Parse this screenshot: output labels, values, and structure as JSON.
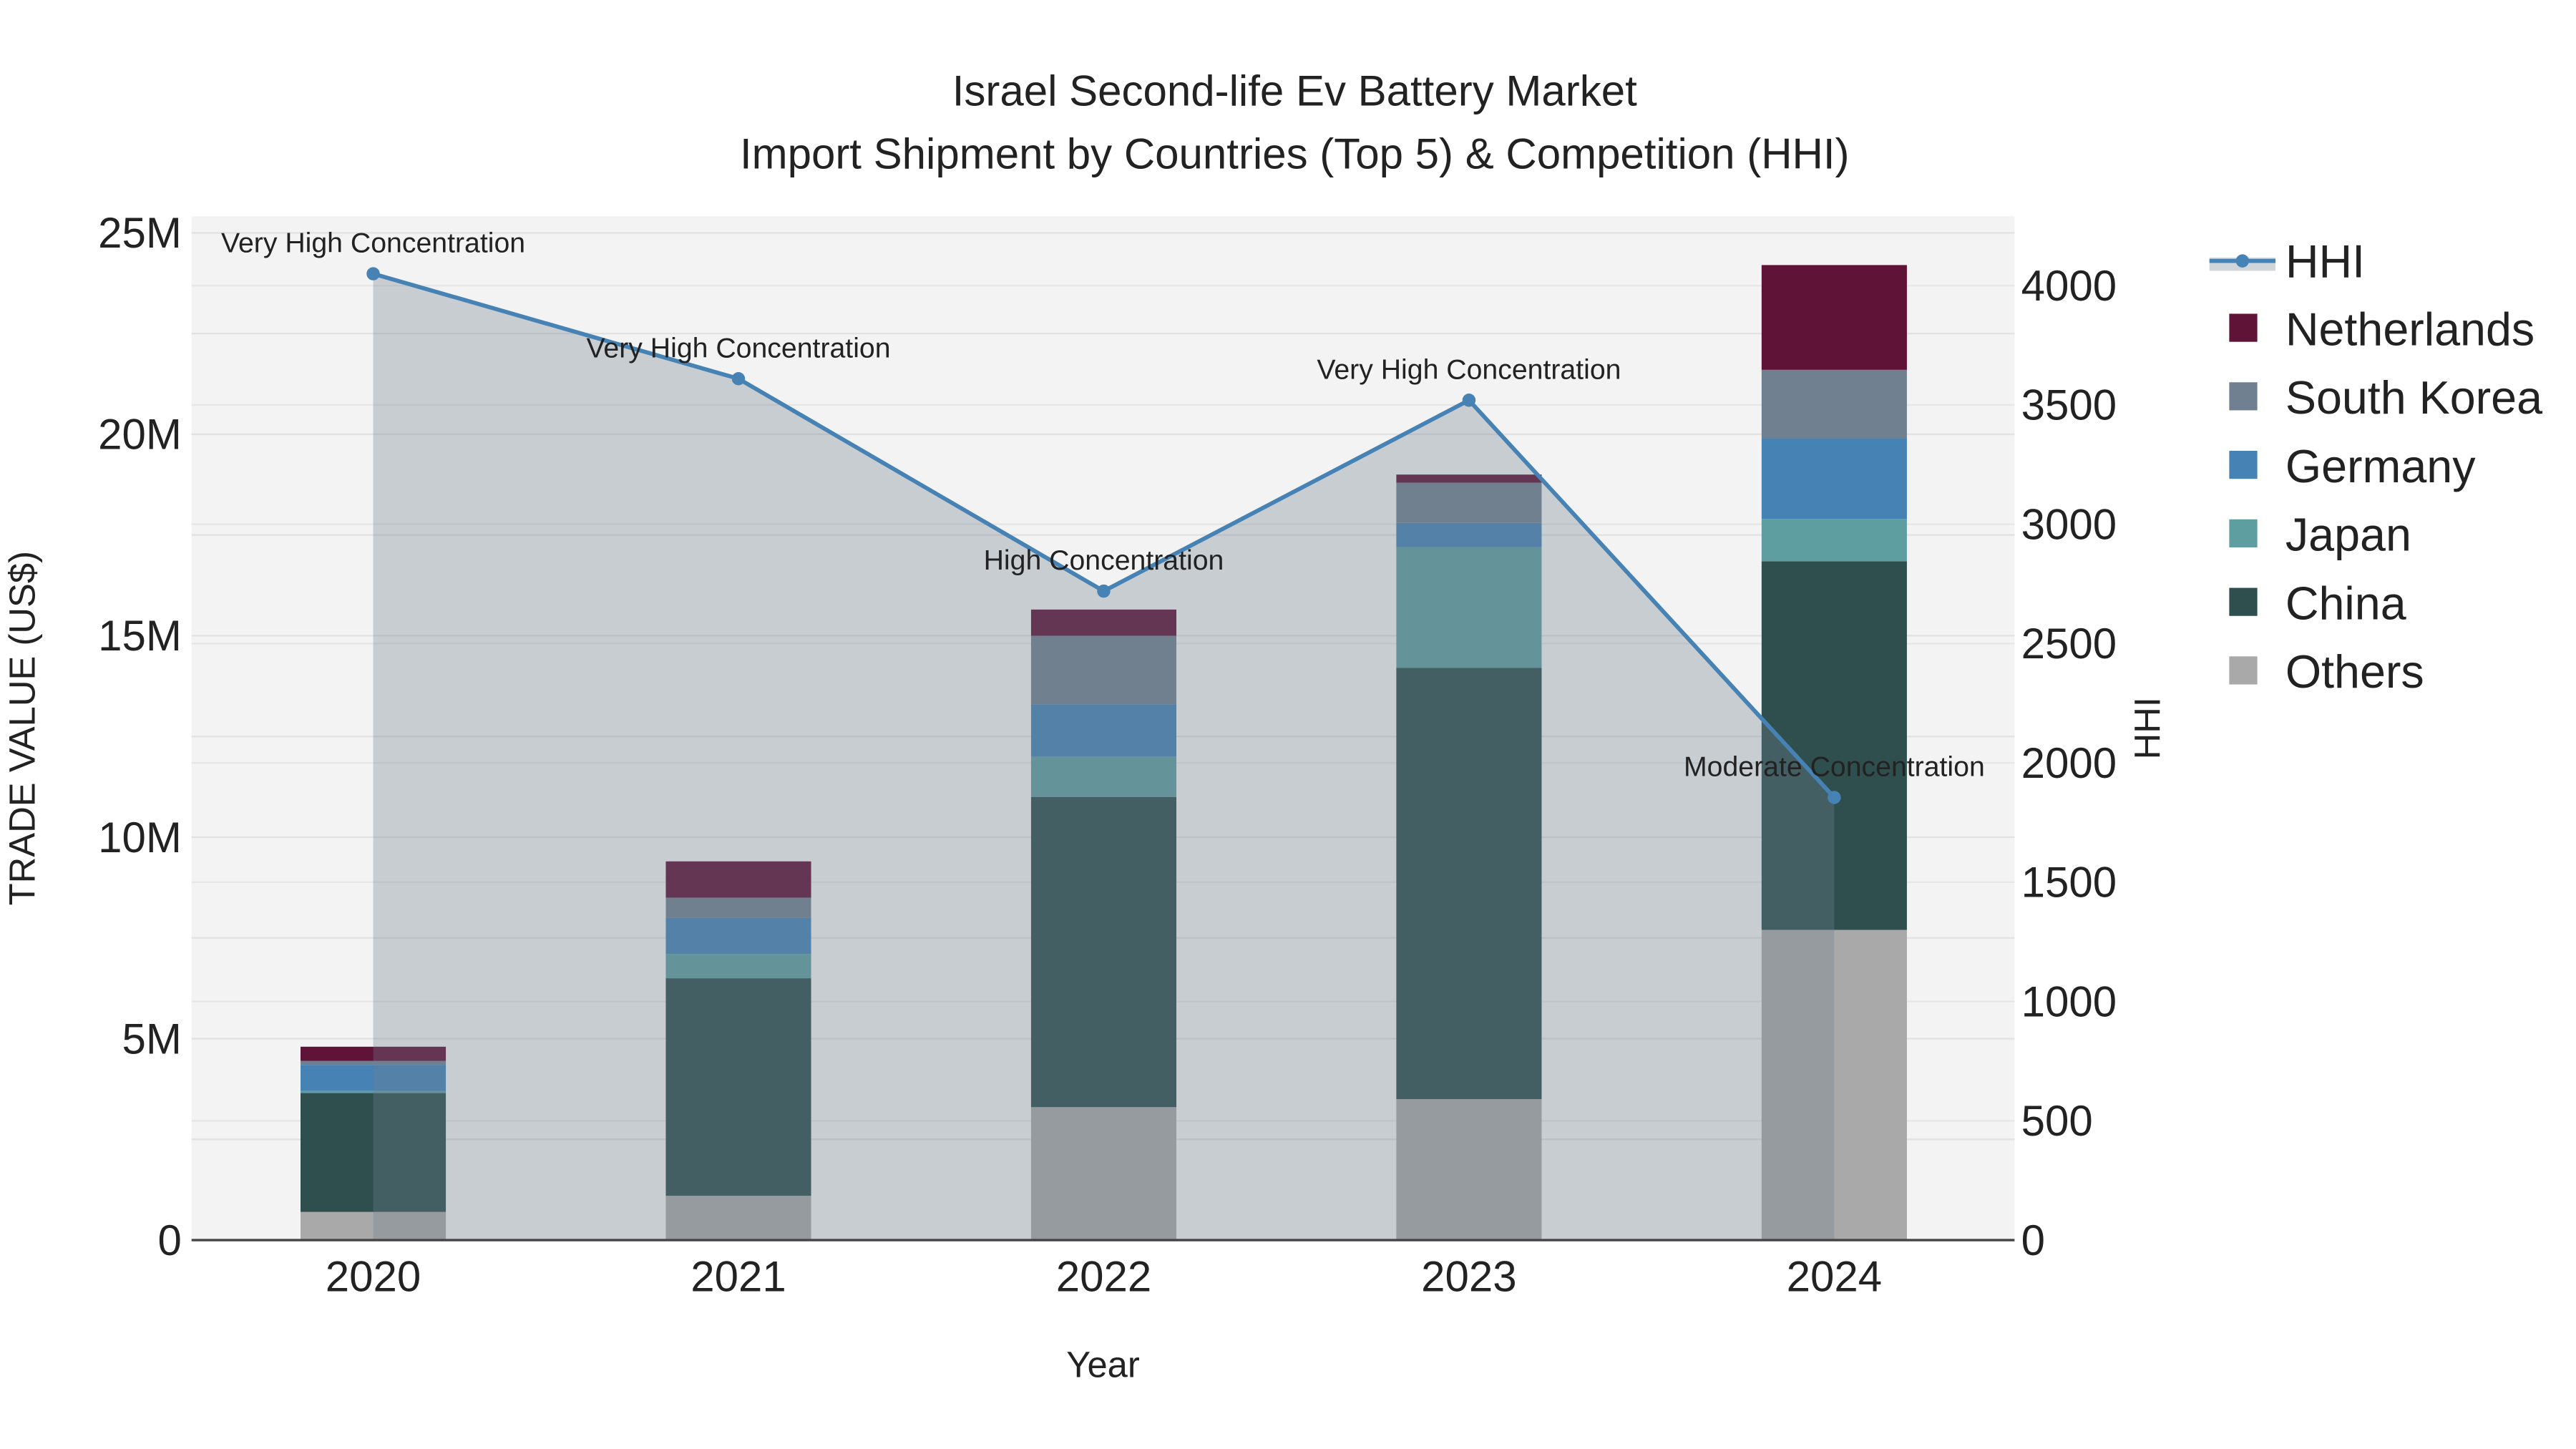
{
  "chart_data": {
    "type": "bar",
    "title": "Israel Second-life Ev Battery Market",
    "subtitle": "Import Shipment by Countries (Top 5) & Competition (HHI)",
    "xlabel": "Year",
    "ylabel": "TRADE VALUE (US$)",
    "y2label": "HHI",
    "categories": [
      "2020",
      "2021",
      "2022",
      "2023",
      "2024"
    ],
    "ylim": [
      0,
      25000000
    ],
    "y_ticks": [
      0,
      5000000,
      10000000,
      15000000,
      20000000,
      25000000
    ],
    "y_tick_labels": [
      "0",
      "5M",
      "10M",
      "15M",
      "20M",
      "25M"
    ],
    "y2lim": [
      0,
      4300
    ],
    "y2_ticks": [
      0,
      500,
      1000,
      1500,
      2000,
      2500,
      3000,
      3500,
      4000
    ],
    "y2_tick_labels": [
      "0",
      "500",
      "1000",
      "1500",
      "2000",
      "2500",
      "3000",
      "3500",
      "4000"
    ],
    "grid": true,
    "legend_position": "right",
    "series": [
      {
        "name": "Others",
        "color": "#a9a9a9",
        "values": [
          700000,
          1100000,
          3300000,
          3500000,
          7700000
        ]
      },
      {
        "name": "China",
        "color": "#2f4f4f",
        "values": [
          2950000,
          5400000,
          7700000,
          10700000,
          9150000
        ]
      },
      {
        "name": "Japan",
        "color": "#5f9ea0",
        "values": [
          50000,
          600000,
          1000000,
          3000000,
          1050000
        ]
      },
      {
        "name": "Germany",
        "color": "#4682b4",
        "values": [
          650000,
          900000,
          1300000,
          600000,
          2000000
        ]
      },
      {
        "name": "South Korea",
        "color": "#708090",
        "values": [
          100000,
          500000,
          1700000,
          1000000,
          1700000
        ]
      },
      {
        "name": "Netherlands",
        "color": "#5f1336",
        "values": [
          350000,
          900000,
          650000,
          200000,
          2600000
        ]
      }
    ],
    "hhi": {
      "name": "HHI",
      "color": "#4682b4",
      "values": [
        4050,
        3610,
        2720,
        3520,
        1855
      ],
      "labels": [
        "Very High Concentration",
        "Very High Concentration",
        "High Concentration",
        "Very High Concentration",
        "Moderate Concentration"
      ]
    },
    "legend": [
      "HHI",
      "Netherlands",
      "South Korea",
      "Germany",
      "Japan",
      "China",
      "Others"
    ]
  }
}
